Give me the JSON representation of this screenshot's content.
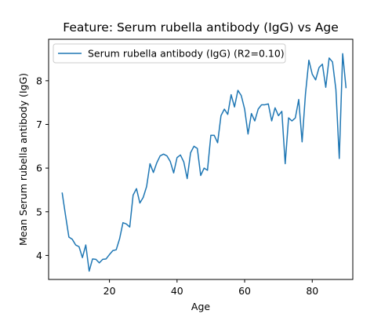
{
  "chart_data": {
    "type": "line",
    "title": "Feature: Serum rubella antibody (IgG) vs Age",
    "xlabel": "Age",
    "ylabel": "Mean Serum rubella antibody (IgG)",
    "xlim": [
      2,
      92
    ],
    "ylim": [
      3.45,
      8.95
    ],
    "xticks": [
      20,
      40,
      60,
      80
    ],
    "yticks": [
      4,
      5,
      6,
      7,
      8
    ],
    "grid": false,
    "legend_position": "upper-left",
    "color": "#1f77b4",
    "series": [
      {
        "name": "Serum rubella antibody (IgG) (R2=0.10)",
        "x": [
          6,
          7,
          8,
          9,
          10,
          11,
          12,
          13,
          14,
          15,
          16,
          17,
          18,
          19,
          20,
          21,
          22,
          23,
          24,
          25,
          26,
          27,
          28,
          29,
          30,
          31,
          32,
          33,
          34,
          35,
          36,
          37,
          38,
          39,
          40,
          41,
          42,
          43,
          44,
          45,
          46,
          47,
          48,
          49,
          50,
          51,
          52,
          53,
          54,
          55,
          56,
          57,
          58,
          59,
          60,
          61,
          62,
          63,
          64,
          65,
          66,
          67,
          68,
          69,
          70,
          71,
          72,
          73,
          74,
          75,
          76,
          77,
          78,
          79,
          80,
          81,
          82,
          83,
          84,
          85,
          86,
          87,
          88,
          89,
          90
        ],
        "values": [
          5.44,
          4.92,
          4.42,
          4.37,
          4.24,
          4.2,
          3.95,
          4.24,
          3.64,
          3.92,
          3.91,
          3.83,
          3.91,
          3.92,
          4.02,
          4.11,
          4.13,
          4.38,
          4.75,
          4.72,
          4.65,
          5.38,
          5.53,
          5.2,
          5.33,
          5.58,
          6.1,
          5.9,
          6.12,
          6.28,
          6.32,
          6.28,
          6.15,
          5.89,
          6.24,
          6.3,
          6.14,
          5.76,
          6.35,
          6.5,
          6.45,
          5.83,
          6.0,
          5.95,
          6.75,
          6.75,
          6.58,
          7.2,
          7.35,
          7.23,
          7.68,
          7.4,
          7.78,
          7.66,
          7.35,
          6.78,
          7.25,
          7.08,
          7.35,
          7.45,
          7.45,
          7.47,
          7.08,
          7.38,
          7.2,
          7.3,
          6.1,
          7.15,
          7.08,
          7.15,
          7.57,
          6.6,
          7.7,
          8.47,
          8.15,
          8.02,
          8.3,
          8.38,
          7.85,
          8.52,
          8.43,
          7.8,
          6.22,
          8.62,
          7.83
        ]
      }
    ]
  }
}
